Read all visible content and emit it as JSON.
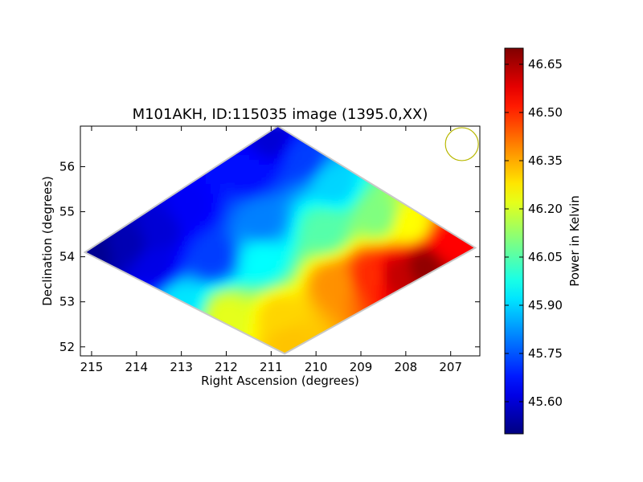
{
  "chart_data": {
    "type": "heatmap",
    "title": "M101AKH, ID:115035 image (1395.0,XX)",
    "xlabel": "Right Ascension (degrees)",
    "ylabel": "Declination (degrees)",
    "xlim": [
      215.25,
      206.35
    ],
    "ylim": [
      51.8,
      56.9
    ],
    "x_ticks": [
      215,
      214,
      213,
      212,
      211,
      210,
      209,
      208,
      207
    ],
    "y_ticks": [
      52,
      53,
      54,
      55,
      56
    ],
    "colorbar": {
      "label": "Power in Kelvin",
      "range": [
        45.5,
        46.7
      ],
      "ticks": [
        "45.60",
        "45.75",
        "45.90",
        "46.05",
        "46.20",
        "46.35",
        "46.50",
        "46.65"
      ]
    },
    "map_region": {
      "shape": "diamond",
      "vertices": [
        [
          215.15,
          54.1
        ],
        [
          210.85,
          56.9
        ],
        [
          206.45,
          54.2
        ],
        [
          210.7,
          51.85
        ]
      ]
    },
    "value_samples": [
      {
        "ra": 215.0,
        "dec": 54.1,
        "value": 45.52
      },
      {
        "ra": 214.2,
        "dec": 54.3,
        "value": 45.56
      },
      {
        "ra": 213.5,
        "dec": 54.6,
        "value": 45.6
      },
      {
        "ra": 213.6,
        "dec": 53.8,
        "value": 45.62
      },
      {
        "ra": 212.8,
        "dec": 55.1,
        "value": 45.64
      },
      {
        "ra": 211.0,
        "dec": 56.6,
        "value": 45.6
      },
      {
        "ra": 211.5,
        "dec": 55.9,
        "value": 45.66
      },
      {
        "ra": 210.3,
        "dec": 56.2,
        "value": 45.72
      },
      {
        "ra": 212.3,
        "dec": 54.0,
        "value": 45.72
      },
      {
        "ra": 211.2,
        "dec": 54.8,
        "value": 45.8
      },
      {
        "ra": 209.6,
        "dec": 55.6,
        "value": 45.9
      },
      {
        "ra": 213.0,
        "dec": 53.0,
        "value": 45.92
      },
      {
        "ra": 211.2,
        "dec": 53.9,
        "value": 45.95
      },
      {
        "ra": 209.8,
        "dec": 54.6,
        "value": 46.05
      },
      {
        "ra": 208.6,
        "dec": 54.9,
        "value": 46.1
      },
      {
        "ra": 207.9,
        "dec": 54.7,
        "value": 46.25
      },
      {
        "ra": 212.0,
        "dec": 52.7,
        "value": 46.22
      },
      {
        "ra": 210.8,
        "dec": 52.7,
        "value": 46.3
      },
      {
        "ra": 210.6,
        "dec": 52.1,
        "value": 46.32
      },
      {
        "ra": 209.6,
        "dec": 53.4,
        "value": 46.38
      },
      {
        "ra": 208.8,
        "dec": 53.6,
        "value": 46.5
      },
      {
        "ra": 207.0,
        "dec": 54.3,
        "value": 46.55
      },
      {
        "ra": 207.6,
        "dec": 53.8,
        "value": 46.68
      },
      {
        "ra": 208.2,
        "dec": 53.6,
        "value": 46.62
      }
    ],
    "beam_marker": {
      "ra": 206.75,
      "dec": 56.5,
      "shape": "circle",
      "color": "#b8b800"
    },
    "grid": false,
    "legend": "none"
  }
}
